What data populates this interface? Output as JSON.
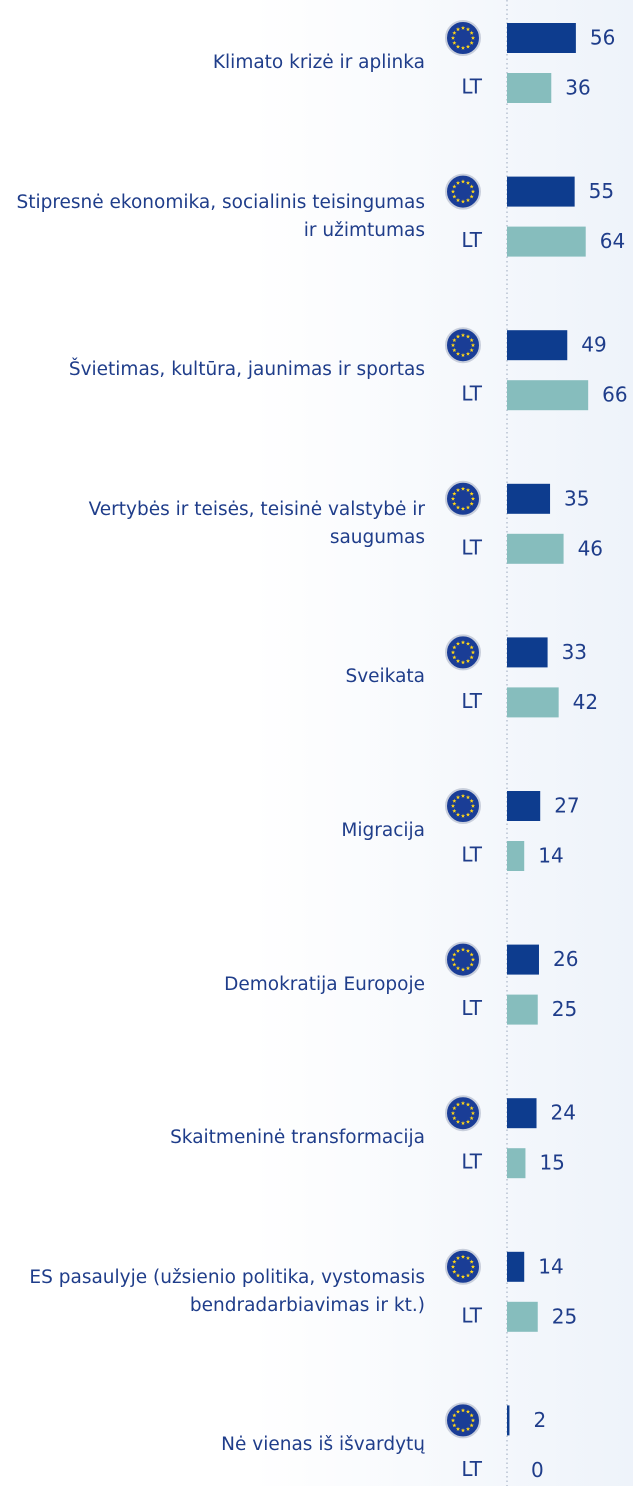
{
  "chart_data": {
    "type": "bar",
    "orientation": "horizontal",
    "categories": [
      "Klimato krizė ir aplinka",
      "Stipresnė ekonomika, socialinis teisingumas ir užimtumas",
      "Švietimas, kultūra, jaunimas ir sportas",
      "Vertybės ir teisės, teisinė valstybė ir saugumas",
      "Sveikata",
      "Migracija",
      "Demokratija Europoje",
      "Skaitmeninė transformacija",
      "ES pasaulyje (užsienio politika, vystomasis bendradarbiavimas ir kt.)",
      "Nė vienas iš išvardytų"
    ],
    "series": [
      {
        "color": "#0d3c8e",
        "values": [
          56,
          55,
          49,
          35,
          33,
          27,
          26,
          24,
          14,
          2
        ]
      },
      {
        "name": "LT",
        "color": "#86bdbd",
        "values": [
          36,
          64,
          66,
          46,
          42,
          14,
          25,
          15,
          25,
          0
        ]
      }
    ],
    "xlim": [
      0,
      100
    ]
  }
}
